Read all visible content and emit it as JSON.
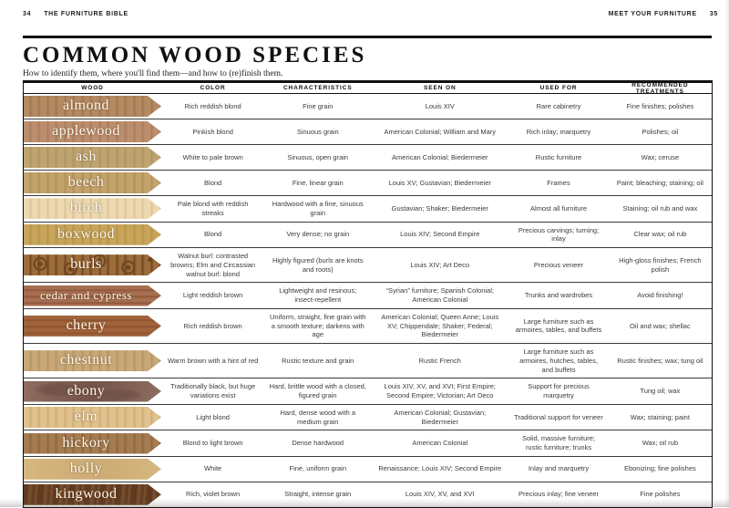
{
  "accent_color": "#101010",
  "running_head": {
    "left_page_number": "34",
    "left_text": "THE FURNITURE BIBLE",
    "right_text": "MEET YOUR FURNITURE",
    "right_page_number": "35"
  },
  "header": {
    "title": "COMMON WOOD SPECIES",
    "subtitle": "How to identify them, where you'll find them—and how to (re)finish them."
  },
  "table": {
    "columns": [
      "WOOD",
      "COLOR",
      "CHARACTERISTICS",
      "SEEN ON",
      "USED FOR",
      "RECOMMENDED TREATMENTS"
    ],
    "rows": [
      {
        "wood": "almond",
        "color": "Rich reddish blond",
        "characteristics": "Fine grain",
        "seen_on": "Louis XIV",
        "used_for": "Rare cabinetry",
        "treatments": "Fine finishes; polishes",
        "swatch": {
          "base": "#b48a62",
          "grain": "#a1754f",
          "pattern": "v-grain"
        }
      },
      {
        "wood": "applewood",
        "color": "Pinkish blond",
        "characteristics": "Sinuous grain",
        "seen_on": "American Colonial; William and Mary",
        "used_for": "Rich inlay; marquetry",
        "treatments": "Polishes; oil",
        "swatch": {
          "base": "#bb8f6e",
          "grain": "#a97b59",
          "pattern": "v-grain"
        }
      },
      {
        "wood": "ash",
        "color": "White to pale brown",
        "characteristics": "Sinuous, open grain",
        "seen_on": "American Colonial; Biedermeier",
        "used_for": "Rustic furniture",
        "treatments": "Wax; ceruse",
        "swatch": {
          "base": "#bfa46f",
          "grain": "#ae9363",
          "pattern": "v-grain"
        }
      },
      {
        "wood": "beech",
        "color": "Blond",
        "characteristics": "Fine, linear grain",
        "seen_on": "Louis XV; Gustavian; Biedermeier",
        "used_for": "Frames",
        "treatments": "Paint; bleaching; staining; oil",
        "swatch": {
          "base": "#c3a36c",
          "grain": "#b18e58",
          "pattern": "v-grain"
        }
      },
      {
        "wood": "birch",
        "color": "Pale blond with reddish streaks",
        "characteristics": "Hardwood with a fine, sinuous grain",
        "seen_on": "Gustavian; Shaker; Biedermeier",
        "used_for": "Almost all furniture",
        "treatments": "Staining; oil rub and wax",
        "swatch": {
          "base": "#ecd9b2",
          "grain": "#ddc295",
          "pattern": "v-grain"
        }
      },
      {
        "wood": "boxwood",
        "color": "Blond",
        "characteristics": "Very dense; no grain",
        "seen_on": "Louis XIV; Second Empire",
        "used_for": "Precious carvings; turning; inlay",
        "treatments": "Clear wax; oil rub",
        "swatch": {
          "base": "#c7a55a",
          "grain": "#b8924a",
          "pattern": "v-grain"
        }
      },
      {
        "wood": "burls",
        "color": "Walnut burl: contrasted browns; Elm and Circassian walnut burl: blond",
        "characteristics": "Highly figured (burls are knots and roots)",
        "seen_on": "Louis XIV; Art Deco",
        "used_for": "Precious veneer",
        "treatments": "High-gloss finishes; French polish",
        "swatch": {
          "base": "#9c6c3a",
          "grain": "#6d4520",
          "pattern": "burl"
        }
      },
      {
        "wood": "cedar and cypress",
        "color": "Light reddish brown",
        "characteristics": "Lightweight and resinous; insect-repellent",
        "seen_on": "“Syrian” furniture; Spanish Colonial; American Colonial",
        "used_for": "Trunks and wardrobes",
        "treatments": "Avoid finishing!",
        "swatch": {
          "base": "#a76f50",
          "grain": "#8a5339",
          "pattern": "knot"
        }
      },
      {
        "wood": "cherry",
        "color": "Rich reddish brown",
        "characteristics": "Uniform, straight, fine grain with a smooth texture; darkens with age",
        "seen_on": "American Colonial; Queen Anne; Louis XV; Chippendale; Shaker; Federal; Biedermeier",
        "used_for": "Large furniture such as armoires, tables, and buffets",
        "treatments": "Oil and wax; shellac",
        "swatch": {
          "base": "#a0633a",
          "grain": "#8a502d",
          "pattern": "h-grain"
        }
      },
      {
        "wood": "chestnut",
        "color": "Warm brown with a hint of red",
        "characteristics": "Rustic texture and grain",
        "seen_on": "Rustic French",
        "used_for": "Large furniture such as armoires, hutches, tables, and buffets",
        "treatments": "Rustic finishes; wax; tung oil",
        "swatch": {
          "base": "#c7a876",
          "grain": "#b69264",
          "pattern": "v-grain"
        }
      },
      {
        "wood": "ebony",
        "color": "Traditionally black, but huge variations exist",
        "characteristics": "Hard, brittle wood with a closed, figured grain",
        "seen_on": "Louis XIV, XV, and XVI; First Empire; Second Empire; Victorian; Art Deco",
        "used_for": "Support for precious marquetry",
        "treatments": "Tung oil; wax",
        "swatch": {
          "base": "#8f6d60",
          "grain": "#73534a",
          "pattern": "mottle"
        }
      },
      {
        "wood": "elm",
        "color": "Light blond",
        "characteristics": "Hard, dense wood with a medium grain",
        "seen_on": "American Colonial; Gustavian; Biedermeier",
        "used_for": "Traditional support for veneer",
        "treatments": "Wax; staining; paint",
        "swatch": {
          "base": "#e0c28e",
          "grain": "#cfab74",
          "pattern": "v-grain"
        }
      },
      {
        "wood": "hickory",
        "color": "Blond to light brown",
        "characteristics": "Dense hardwood",
        "seen_on": "American Colonial",
        "used_for": "Solid, massive furniture; rustic furniture; trunks",
        "treatments": "Wax; oil rub",
        "swatch": {
          "base": "#a57c50",
          "grain": "#8d663d",
          "pattern": "v-grain"
        }
      },
      {
        "wood": "holly",
        "color": "White",
        "characteristics": "Fine, uniform grain",
        "seen_on": "Renaissance; Louis XIV; Second Empire",
        "used_for": "Inlay and marquetry",
        "treatments": "Ebonizing; fine polishes",
        "swatch": {
          "base": "#d6b77f",
          "grain": "#ccab74",
          "pattern": "plain"
        }
      },
      {
        "wood": "kingwood",
        "color": "Rich, violet brown",
        "characteristics": "Straight, intense grain",
        "seen_on": "Louis XIV, XV, and XVI",
        "used_for": "Precious inlay; fine veneer",
        "treatments": "Fine polishes",
        "swatch": {
          "base": "#5e3a21",
          "grain": "#7f512c",
          "pattern": "stripes"
        }
      }
    ]
  }
}
